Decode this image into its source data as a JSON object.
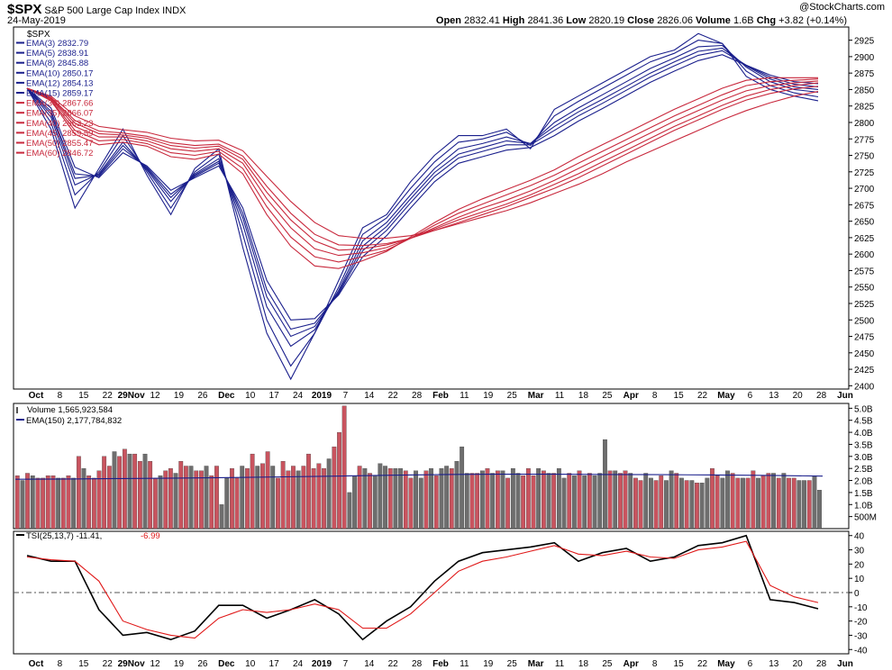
{
  "header": {
    "symbol": "$SPX",
    "name": "S&P 500 Large Cap Index",
    "exchange": "INDX",
    "date": "24-May-2019",
    "watermark": "@StockCharts.com",
    "open_label": "Open",
    "open": "2832.41",
    "high_label": "High",
    "high": "2841.36",
    "low_label": "Low",
    "low": "2820.19",
    "close_label": "Close",
    "close": "2826.06",
    "volume_label": "Volume",
    "volume": "1.6B",
    "chg_label": "Chg",
    "chg": "+3.82 (+0.14%)"
  },
  "colors": {
    "ema_short": "#1a1f8c",
    "ema_long": "#c8283c",
    "vol_up": "#c9545f",
    "vol_down": "#6e6e6e",
    "tsi": "#000000",
    "tsi_signal": "#e01818",
    "vol_ema": "#1a1f8c"
  },
  "chart_data": [
    {
      "type": "line",
      "panel": "price",
      "title": "$SPX",
      "x_tick_labels": [
        "Oct",
        "8",
        "15",
        "22",
        "29Nov",
        "12",
        "19",
        "26",
        "Dec",
        "10",
        "17",
        "24",
        "2019",
        "7",
        "14",
        "22",
        "28",
        "Feb",
        "11",
        "19",
        "25",
        "Mar",
        "11",
        "18",
        "25",
        "Apr",
        "8",
        "15",
        "22",
        "May",
        "6",
        "13",
        "20",
        "28",
        "Jun"
      ],
      "y_ticks": [
        2400,
        2425,
        2450,
        2475,
        2500,
        2525,
        2550,
        2575,
        2600,
        2625,
        2650,
        2675,
        2700,
        2725,
        2750,
        2775,
        2800,
        2825,
        2850,
        2875,
        2900,
        2925
      ],
      "ylim": [
        2395,
        2945
      ],
      "x_weeks": [
        0,
        1,
        2,
        3,
        4,
        5,
        6,
        7,
        8,
        9,
        10,
        11,
        12,
        13,
        14,
        15,
        16,
        17,
        18,
        19,
        20,
        21,
        22,
        23,
        24,
        25,
        26,
        27,
        28,
        29,
        30,
        31,
        32,
        33
      ],
      "series": [
        {
          "name": "EMA(3)",
          "last": "2832.79",
          "values": [
            2852,
            2790,
            2670,
            2730,
            2790,
            2720,
            2660,
            2730,
            2760,
            2610,
            2480,
            2410,
            2480,
            2560,
            2640,
            2660,
            2710,
            2750,
            2780,
            2780,
            2790,
            2760,
            2820,
            2840,
            2860,
            2880,
            2900,
            2910,
            2935,
            2920,
            2870,
            2850,
            2840,
            2833
          ]
        },
        {
          "name": "EMA(5)",
          "last": "2838.91",
          "values": [
            2852,
            2800,
            2690,
            2725,
            2780,
            2725,
            2670,
            2725,
            2752,
            2630,
            2500,
            2430,
            2480,
            2550,
            2630,
            2655,
            2700,
            2740,
            2770,
            2775,
            2785,
            2765,
            2810,
            2832,
            2852,
            2872,
            2892,
            2905,
            2925,
            2920,
            2878,
            2856,
            2845,
            2839
          ]
        },
        {
          "name": "EMA(8)",
          "last": "2845.88",
          "values": [
            2852,
            2808,
            2705,
            2722,
            2770,
            2728,
            2680,
            2722,
            2745,
            2645,
            2520,
            2460,
            2485,
            2545,
            2620,
            2648,
            2690,
            2730,
            2760,
            2768,
            2778,
            2768,
            2800,
            2822,
            2842,
            2862,
            2882,
            2898,
            2915,
            2917,
            2884,
            2862,
            2850,
            2846
          ]
        },
        {
          "name": "EMA(10)",
          "last": "2850.17",
          "values": [
            2852,
            2813,
            2715,
            2720,
            2765,
            2730,
            2686,
            2720,
            2741,
            2655,
            2535,
            2475,
            2490,
            2542,
            2612,
            2642,
            2684,
            2724,
            2752,
            2762,
            2772,
            2768,
            2794,
            2816,
            2835,
            2855,
            2875,
            2892,
            2908,
            2913,
            2886,
            2866,
            2854,
            2850
          ]
        },
        {
          "name": "EMA(12)",
          "last": "2854.13",
          "values": [
            2852,
            2817,
            2722,
            2718,
            2760,
            2732,
            2691,
            2718,
            2738,
            2662,
            2546,
            2486,
            2495,
            2540,
            2605,
            2636,
            2678,
            2718,
            2746,
            2756,
            2766,
            2766,
            2788,
            2810,
            2829,
            2849,
            2869,
            2886,
            2902,
            2909,
            2887,
            2869,
            2858,
            2854
          ]
        },
        {
          "name": "EMA(15)",
          "last": "2859.17",
          "values": [
            2852,
            2822,
            2732,
            2716,
            2754,
            2734,
            2697,
            2716,
            2734,
            2670,
            2560,
            2500,
            2502,
            2538,
            2596,
            2628,
            2670,
            2710,
            2738,
            2748,
            2758,
            2762,
            2780,
            2802,
            2821,
            2841,
            2861,
            2878,
            2894,
            2903,
            2887,
            2872,
            2862,
            2859
          ]
        },
        {
          "name": "EMA(30)",
          "last": "2867.66",
          "values": [
            2852,
            2833,
            2782,
            2766,
            2770,
            2764,
            2748,
            2744,
            2752,
            2722,
            2660,
            2612,
            2582,
            2578,
            2590,
            2604,
            2626,
            2648,
            2668,
            2684,
            2698,
            2712,
            2728,
            2748,
            2766,
            2784,
            2802,
            2820,
            2836,
            2852,
            2864,
            2868,
            2868,
            2868
          ]
        },
        {
          "name": "EMA(35)",
          "last": "2866.07",
          "values": [
            2852,
            2834,
            2788,
            2772,
            2774,
            2768,
            2754,
            2750,
            2756,
            2730,
            2672,
            2626,
            2596,
            2588,
            2596,
            2606,
            2624,
            2644,
            2662,
            2676,
            2690,
            2704,
            2720,
            2738,
            2756,
            2774,
            2792,
            2810,
            2826,
            2842,
            2856,
            2862,
            2864,
            2866
          ]
        },
        {
          "name": "EMA(40)",
          "last": "2863.23",
          "values": [
            2852,
            2836,
            2794,
            2778,
            2778,
            2772,
            2760,
            2756,
            2760,
            2738,
            2684,
            2640,
            2608,
            2598,
            2602,
            2610,
            2624,
            2640,
            2656,
            2670,
            2682,
            2696,
            2712,
            2730,
            2748,
            2766,
            2784,
            2802,
            2818,
            2834,
            2848,
            2856,
            2860,
            2863
          ]
        },
        {
          "name": "EMA(45)",
          "last": "2859.59",
          "values": [
            2852,
            2837,
            2799,
            2783,
            2781,
            2776,
            2765,
            2761,
            2764,
            2744,
            2694,
            2652,
            2620,
            2606,
            2608,
            2614,
            2624,
            2638,
            2652,
            2664,
            2676,
            2690,
            2706,
            2722,
            2740,
            2758,
            2776,
            2794,
            2810,
            2826,
            2840,
            2850,
            2856,
            2860
          ]
        },
        {
          "name": "EMA(50)",
          "last": "2855.47",
          "values": [
            2852,
            2838,
            2803,
            2787,
            2784,
            2779,
            2769,
            2765,
            2767,
            2749,
            2703,
            2662,
            2630,
            2614,
            2613,
            2616,
            2624,
            2636,
            2648,
            2660,
            2672,
            2686,
            2700,
            2716,
            2734,
            2752,
            2770,
            2788,
            2804,
            2820,
            2834,
            2844,
            2851,
            2855
          ]
        },
        {
          "name": "EMA(60)",
          "last": "2846.72",
          "values": [
            2852,
            2840,
            2810,
            2794,
            2789,
            2785,
            2776,
            2772,
            2773,
            2757,
            2718,
            2680,
            2648,
            2628,
            2624,
            2624,
            2628,
            2636,
            2646,
            2656,
            2666,
            2678,
            2692,
            2706,
            2722,
            2740,
            2756,
            2772,
            2788,
            2804,
            2818,
            2830,
            2840,
            2847
          ]
        }
      ]
    },
    {
      "type": "bar",
      "panel": "volume",
      "title": "Volume",
      "volume_label": "Volume 1,565,923,584",
      "ema_label": "EMA(150) 2,177,784,832",
      "y_tick_labels": [
        "500M",
        "1.0B",
        "1.5B",
        "2.0B",
        "2.5B",
        "3.0B",
        "3.5B",
        "4.0B",
        "4.5B",
        "5.0B"
      ],
      "ylim": [
        0,
        5.2
      ],
      "units": "billions",
      "values": [
        2.2,
        2.0,
        2.3,
        2.2,
        2.1,
        2.1,
        2.2,
        2.2,
        2.1,
        2.1,
        2.2,
        2.1,
        3.0,
        2.5,
        2.2,
        2.1,
        2.4,
        3.0,
        2.6,
        3.2,
        3.0,
        3.3,
        3.1,
        3.1,
        2.8,
        3.1,
        2.8,
        2.1,
        2.2,
        2.4,
        2.5,
        2.3,
        2.8,
        2.6,
        2.6,
        2.4,
        2.4,
        2.6,
        2.2,
        2.6,
        1.0,
        2.1,
        2.5,
        2.1,
        2.6,
        2.5,
        3.1,
        2.6,
        2.7,
        3.2,
        2.6,
        2.1,
        2.8,
        2.4,
        2.6,
        2.4,
        2.6,
        3.1,
        2.5,
        2.7,
        2.5,
        2.9,
        3.4,
        4.0,
        5.1,
        1.5,
        2.2,
        2.6,
        2.5,
        2.3,
        2.2,
        2.7,
        2.6,
        2.5,
        2.5,
        2.5,
        2.4,
        2.1,
        2.4,
        2.1,
        2.4,
        2.5,
        2.2,
        2.5,
        2.6,
        2.5,
        2.8,
        3.4,
        2.3,
        2.3,
        2.3,
        2.4,
        2.5,
        2.3,
        2.4,
        2.4,
        2.1,
        2.5,
        2.3,
        2.2,
        2.5,
        2.2,
        2.5,
        2.4,
        2.3,
        2.3,
        2.5,
        2.1,
        2.3,
        2.2,
        2.4,
        2.2,
        2.3,
        2.2,
        2.3,
        3.7,
        2.4,
        2.4,
        2.3,
        2.4,
        2.3,
        2.1,
        2.0,
        2.3,
        2.1,
        2.0,
        2.2,
        2.0,
        2.4,
        2.3,
        2.1,
        2.0,
        2.0,
        1.9,
        1.9,
        2.1,
        2.5,
        2.2,
        2.1,
        2.4,
        2.3,
        2.1,
        2.1,
        2.1,
        2.4,
        2.1,
        2.2,
        2.3,
        2.3,
        2.1,
        2.3,
        2.1,
        2.1,
        2.0,
        2.0,
        2.0,
        2.2,
        1.6
      ],
      "up_days": [
        true,
        false,
        true,
        false,
        true,
        true,
        true,
        true,
        false,
        true,
        true,
        false,
        true,
        false,
        true,
        true,
        true,
        true,
        true,
        false,
        true,
        true,
        false,
        true,
        true,
        false,
        true,
        true,
        false,
        true,
        true,
        false,
        true,
        true,
        false,
        true,
        true,
        false,
        true,
        true,
        false,
        false,
        true,
        true,
        false,
        true,
        true,
        false,
        true,
        true,
        false,
        true,
        true,
        true,
        true,
        false,
        true,
        true,
        true,
        true,
        true,
        false,
        true,
        true,
        true,
        false,
        false,
        true,
        false,
        true,
        false,
        false,
        false,
        true,
        false,
        false,
        true,
        true,
        false,
        false,
        true,
        false,
        true,
        false,
        false,
        true,
        false,
        false,
        false,
        true,
        true,
        false,
        true,
        false,
        true,
        false,
        true,
        false,
        false,
        true,
        true,
        true,
        false,
        true,
        false,
        true,
        false,
        false,
        true,
        false,
        true,
        false,
        true,
        false,
        false,
        false,
        true,
        false,
        true,
        true,
        false,
        true,
        true,
        false,
        false,
        true,
        true,
        false,
        false,
        true,
        false,
        true,
        false,
        true,
        false,
        false,
        true,
        true,
        false,
        false,
        true,
        true,
        false,
        true,
        true,
        false,
        true,
        true,
        false,
        true,
        false,
        true,
        true,
        false,
        false,
        true,
        false,
        false
      ],
      "ema_values": [
        2.05,
        2.06,
        2.08,
        2.1,
        2.12,
        2.15,
        2.18,
        2.22,
        2.25,
        2.26,
        2.26,
        2.25,
        2.24,
        2.23,
        2.21,
        2.18
      ]
    },
    {
      "type": "line",
      "panel": "tsi",
      "title": "TSI(25,13,7)",
      "label": "TSI(25,13,7) -11.41,",
      "signal_label": "-6.99",
      "y_ticks": [
        -40,
        -30,
        -20,
        -10,
        0,
        10,
        20,
        30,
        40
      ],
      "ylim": [
        -43,
        43
      ],
      "series": [
        {
          "name": "TSI",
          "last": "-11.41",
          "values": [
            26,
            22,
            22,
            -12,
            -30,
            -28,
            -33,
            -27,
            -9,
            -9,
            -18,
            -12,
            -5,
            -15,
            -33,
            -20,
            -10,
            8,
            22,
            28,
            30,
            32,
            35,
            22,
            28,
            31,
            22,
            25,
            33,
            35,
            40,
            -5,
            -7,
            -11.41
          ]
        },
        {
          "name": "Signal",
          "last": "-6.99",
          "values": [
            25,
            23,
            22,
            8,
            -20,
            -26,
            -30,
            -32,
            -18,
            -12,
            -14,
            -12,
            -8,
            -12,
            -25,
            -25,
            -15,
            0,
            15,
            22,
            25,
            29,
            33,
            27,
            26,
            29,
            25,
            24,
            30,
            32,
            36,
            5,
            -3,
            -6.99
          ]
        }
      ]
    }
  ]
}
